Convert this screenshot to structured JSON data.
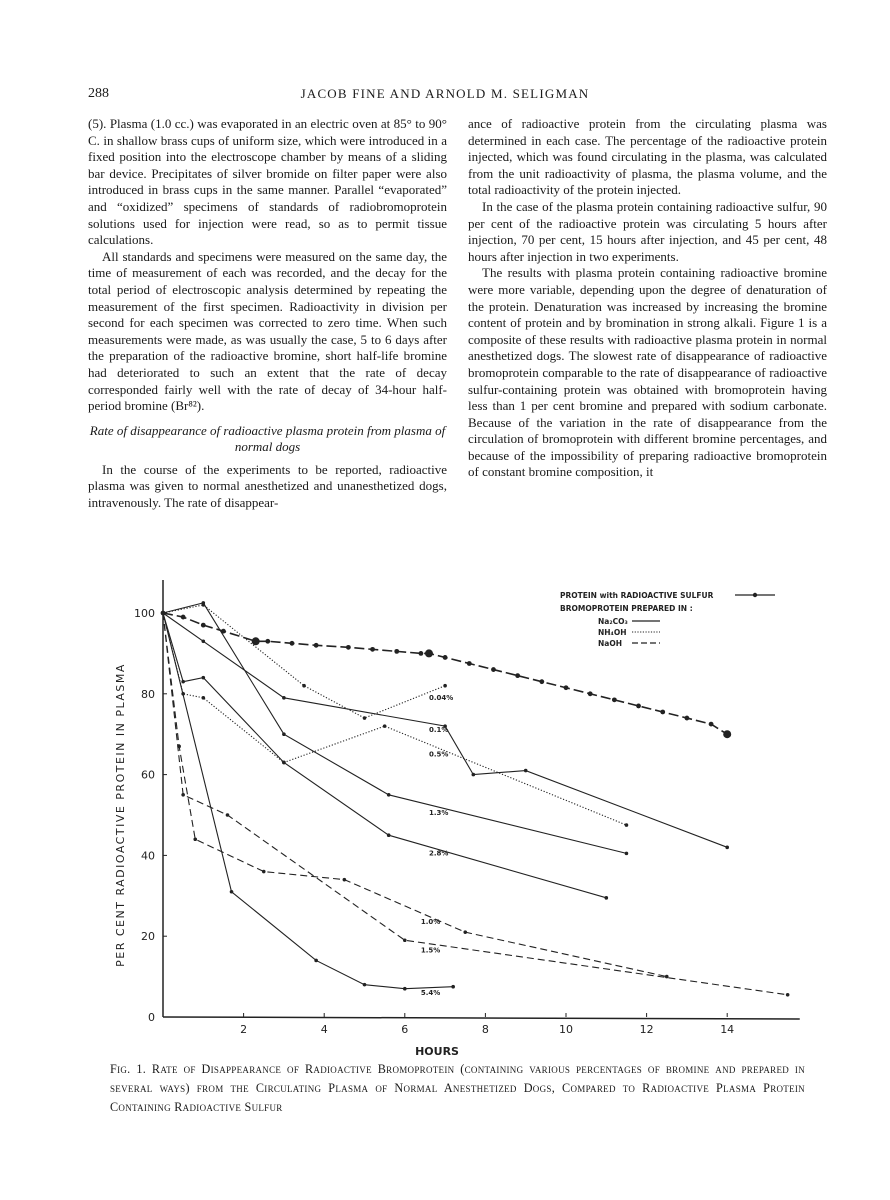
{
  "header": {
    "page_number": "288",
    "running_head": "JACOB FINE AND ARNOLD M. SELIGMAN"
  },
  "left_column": {
    "paragraphs": [
      "(5). Plasma (1.0 cc.) was evaporated in an electric oven at 85° to 90° C. in shallow brass cups of uniform size, which were introduced in a fixed position into the electroscope chamber by means of a sliding bar device. Precipitates of silver bromide on filter paper were also introduced in brass cups in the same manner. Parallel “evaporated” and “oxidized” specimens of standards of radiobromoprotein solutions used for injection were read, so as to permit tissue calculations.",
      "All standards and specimens were measured on the same day, the time of measurement of each was recorded, and the decay for the total period of electroscopic analysis determined by repeating the measurement of the first specimen. Radioactivity in division per second for each specimen was corrected to zero time. When such measurements were made, as was usually the case, 5 to 6 days after the preparation of the radioactive bromine, short half-life bromine had deteriorated to such an extent that the rate of decay corresponded fairly well with the rate of decay of 34-hour half-period bromine (Br⁸²)."
    ],
    "subheading": "Rate of disappearance of radioactive plasma protein from plasma of normal dogs",
    "paragraph_after": "In the course of the experiments to be reported, radioactive plasma was given to normal anesthetized and unanesthetized dogs, intravenously. The rate of disappear-"
  },
  "right_column": {
    "paragraphs": [
      "ance of radioactive protein from the circulating plasma was determined in each case. The percentage of the radioactive protein injected, which was found circulating in the plasma, was calculated from the unit radioactivity of plasma, the plasma volume, and the total radioactivity of the protein injected.",
      "In the case of the plasma protein containing radioactive sulfur, 90 per cent of the radioactive protein was circulating 5 hours after injection, 70 per cent, 15 hours after injection, and 45 per cent, 48 hours after injection in two experiments.",
      "The results with plasma protein containing radioactive bromine were more variable, depending upon the degree of denaturation of the protein. Denaturation was increased by increasing the bromine content of protein and by bromination in strong alkali. Figure 1 is a composite of these results with radioactive plasma protein in normal anesthetized dogs. The slowest rate of disappearance of radioactive bromoprotein comparable to the rate of disappearance of radioactive sulfur-containing protein was obtained with bromoprotein having less than 1 per cent bromine and prepared with sodium carbonate. Because of the variation in the rate of disappearance from the circulation of bromoprotein with different bromine percentages, and because of the impossibility of preparing radioactive bromoprotein of constant bromine composition, it"
    ]
  },
  "chart_data": {
    "type": "line",
    "title": "",
    "xlabel": "HOURS",
    "ylabel": "PER CENT RADIOACTIVE PROTEIN IN PLASMA",
    "xlim": [
      0,
      16
    ],
    "ylim": [
      0,
      110
    ],
    "xticks": [
      "2",
      "4",
      "6",
      "8",
      "10",
      "12",
      "14"
    ],
    "xtick_values": [
      2,
      4,
      6,
      8,
      10,
      12,
      14
    ],
    "yticks": [
      "0",
      "20",
      "40",
      "60",
      "80",
      "100"
    ],
    "ytick_values": [
      0,
      20,
      40,
      60,
      80,
      100
    ],
    "grid": false,
    "legend": {
      "position": "top-right",
      "sulfur_label": "PROTEIN with RADIOACTIVE SULFUR",
      "bromo_heading": "BROMOPROTEIN PREPARED IN :",
      "entries": [
        {
          "name": "Na₂CO₃",
          "style": "solid"
        },
        {
          "name": "NH₄OH",
          "style": "dotted"
        },
        {
          "name": "NaOH",
          "style": "dashed"
        }
      ]
    },
    "series": [
      {
        "name": "PROTEIN with RADIOACTIVE SULFUR",
        "style": "sulfur",
        "label": "",
        "x": [
          0,
          0.5,
          1,
          1.5,
          2.3,
          2.6,
          3.2,
          3.8,
          4.6,
          5.2,
          5.8,
          6.4,
          6.6,
          7,
          7.6,
          8.2,
          8.8,
          9.4,
          10,
          10.6,
          11.2,
          11.8,
          12.4,
          13,
          13.6,
          14
        ],
        "y": [
          100,
          99,
          97,
          95.5,
          93,
          93,
          92.5,
          92,
          91.5,
          91,
          90.5,
          90,
          90,
          89,
          87.5,
          86,
          84.5,
          83,
          81.5,
          80,
          78.5,
          77,
          75.5,
          74,
          72.5,
          70
        ]
      },
      {
        "name": "0.04%",
        "style": "dotted",
        "label": "0.04%",
        "label_at": [
          6.6,
          78.5
        ],
        "x": [
          0,
          1,
          3.5,
          5,
          7
        ],
        "y": [
          100,
          102,
          82,
          74,
          82
        ]
      },
      {
        "name": "0.1%",
        "style": "solid",
        "label": "0.1%",
        "label_at": [
          6.6,
          70.5
        ],
        "x": [
          0,
          1,
          3,
          7,
          7.7,
          9,
          14
        ],
        "y": [
          100,
          93,
          79,
          72,
          60,
          61,
          42
        ]
      },
      {
        "name": "0.5%",
        "style": "dotted",
        "label": "0.5%",
        "label_at": [
          6.6,
          64.5
        ],
        "x": [
          0,
          0.5,
          1,
          3,
          5.5,
          11.5
        ],
        "y": [
          100,
          80,
          79,
          63,
          72,
          47.5
        ]
      },
      {
        "name": "1.3%",
        "style": "solid",
        "label": "1.3%",
        "label_at": [
          6.6,
          50
        ],
        "x": [
          0,
          1,
          3,
          5.6,
          11.5
        ],
        "y": [
          100,
          102.5,
          70,
          55,
          40.5
        ]
      },
      {
        "name": "2.8%",
        "style": "solid",
        "label": "2.8%",
        "label_at": [
          6.6,
          40
        ],
        "x": [
          0,
          0.5,
          1,
          3,
          5.6,
          11
        ],
        "y": [
          100,
          83,
          84,
          63,
          45,
          29.5
        ]
      },
      {
        "name": "1.0%",
        "style": "dashed",
        "label": "1.0%",
        "label_at": [
          6.4,
          23
        ],
        "x": [
          0,
          0.4,
          0.8,
          2.5,
          4.5,
          7.5,
          12.5
        ],
        "y": [
          100,
          67,
          44,
          36,
          34,
          21,
          10
        ]
      },
      {
        "name": "1.5%",
        "style": "dashed",
        "label": "1.5%",
        "label_at": [
          6.4,
          16
        ],
        "x": [
          0,
          0.5,
          1.6,
          6,
          15.5
        ],
        "y": [
          100,
          55,
          50,
          19,
          5.5
        ]
      },
      {
        "name": "5.4%",
        "style": "solid",
        "label": "5.4%",
        "label_at": [
          6.4,
          5.5
        ],
        "x": [
          0,
          1.7,
          3.8,
          5,
          6,
          7.2
        ],
        "y": [
          100,
          31,
          14,
          8,
          7,
          7.5
        ]
      }
    ]
  },
  "caption": "Fig. 1. Rate of Disappearance of Radioactive Bromoprotein (containing various percentages of bromine and prepared in several ways) from the Circulating Plasma of Normal Anesthetized Dogs, Compared to Radioactive Plasma Protein Containing Radioactive Sulfur"
}
